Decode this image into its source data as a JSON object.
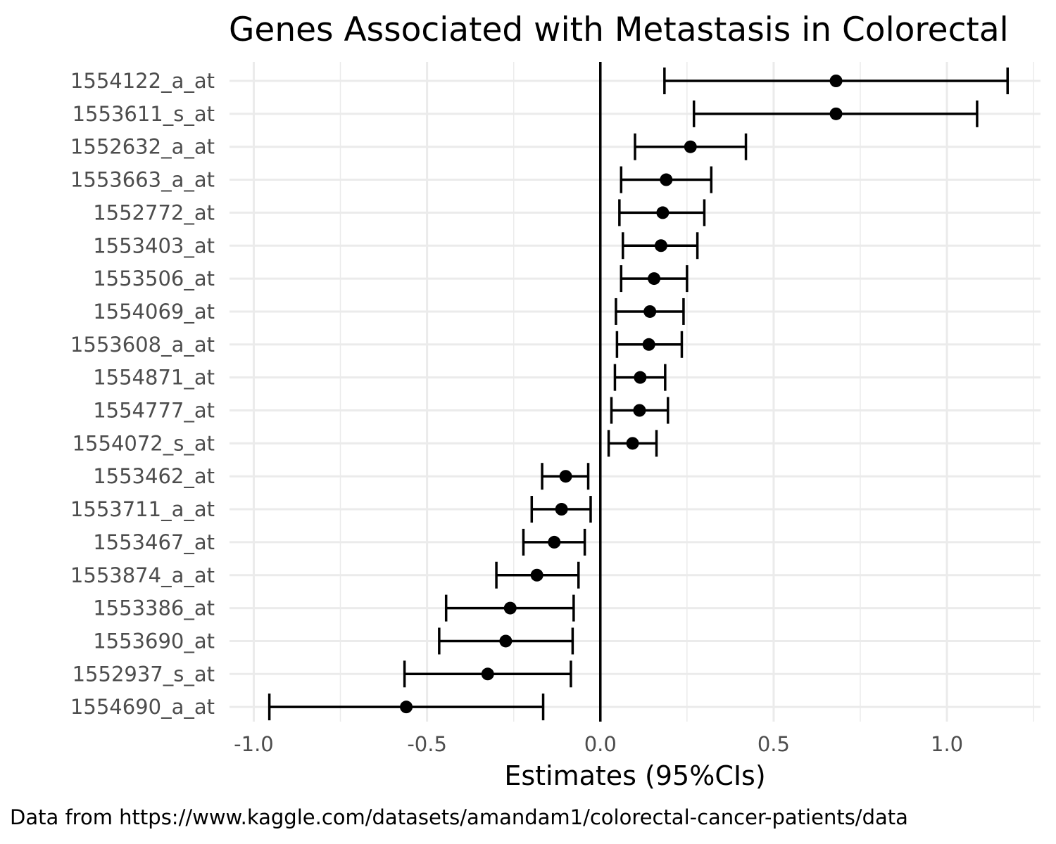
{
  "chart_data": {
    "type": "forest",
    "title": "Genes Associated with Metastasis in Colorectal",
    "xlabel": "Estimates (95%CIs)",
    "caption": "Data from https://www.kaggle.com/datasets/amandam1/colorectal-cancer-patients/data",
    "xlim": [
      -1.07,
      1.27
    ],
    "x_ticks": [
      -1.0,
      -0.5,
      0.0,
      0.5,
      1.0
    ],
    "x_tick_labels": [
      "-1.0",
      "-0.5",
      "0.0",
      "0.5",
      "1.0"
    ],
    "reference_line": 0.0,
    "grid": true,
    "colors": {
      "marks": "#000000",
      "grid": "#ebebeb",
      "tick_text": "#4d4d4d"
    },
    "rows": [
      {
        "label": "1554122_a_at",
        "estimate": 0.68,
        "lower": 0.185,
        "upper": 1.175
      },
      {
        "label": "1553611_s_at",
        "estimate": 0.68,
        "lower": 0.27,
        "upper": 1.087
      },
      {
        "label": "1552632_a_at",
        "estimate": 0.26,
        "lower": 0.1,
        "upper": 0.42
      },
      {
        "label": "1553663_a_at",
        "estimate": 0.19,
        "lower": 0.06,
        "upper": 0.32
      },
      {
        "label": "1552772_at",
        "estimate": 0.18,
        "lower": 0.055,
        "upper": 0.3
      },
      {
        "label": "1553403_at",
        "estimate": 0.175,
        "lower": 0.065,
        "upper": 0.28
      },
      {
        "label": "1553506_at",
        "estimate": 0.155,
        "lower": 0.06,
        "upper": 0.25
      },
      {
        "label": "1554069_at",
        "estimate": 0.143,
        "lower": 0.045,
        "upper": 0.24
      },
      {
        "label": "1553608_a_at",
        "estimate": 0.14,
        "lower": 0.048,
        "upper": 0.235
      },
      {
        "label": "1554871_at",
        "estimate": 0.115,
        "lower": 0.042,
        "upper": 0.187
      },
      {
        "label": "1554777_at",
        "estimate": 0.113,
        "lower": 0.032,
        "upper": 0.195
      },
      {
        "label": "1554072_s_at",
        "estimate": 0.093,
        "lower": 0.024,
        "upper": 0.162
      },
      {
        "label": "1553462_at",
        "estimate": -0.1,
        "lower": -0.168,
        "upper": -0.035
      },
      {
        "label": "1553711_a_at",
        "estimate": -0.112,
        "lower": -0.198,
        "upper": -0.028
      },
      {
        "label": "1553467_at",
        "estimate": -0.133,
        "lower": -0.222,
        "upper": -0.045
      },
      {
        "label": "1553874_a_at",
        "estimate": -0.183,
        "lower": -0.3,
        "upper": -0.063
      },
      {
        "label": "1553386_at",
        "estimate": -0.26,
        "lower": -0.445,
        "upper": -0.077
      },
      {
        "label": "1553690_at",
        "estimate": -0.273,
        "lower": -0.465,
        "upper": -0.08
      },
      {
        "label": "1552937_s_at",
        "estimate": -0.325,
        "lower": -0.565,
        "upper": -0.085
      },
      {
        "label": "1554690_a_at",
        "estimate": -0.56,
        "lower": -0.955,
        "upper": -0.165
      }
    ]
  }
}
